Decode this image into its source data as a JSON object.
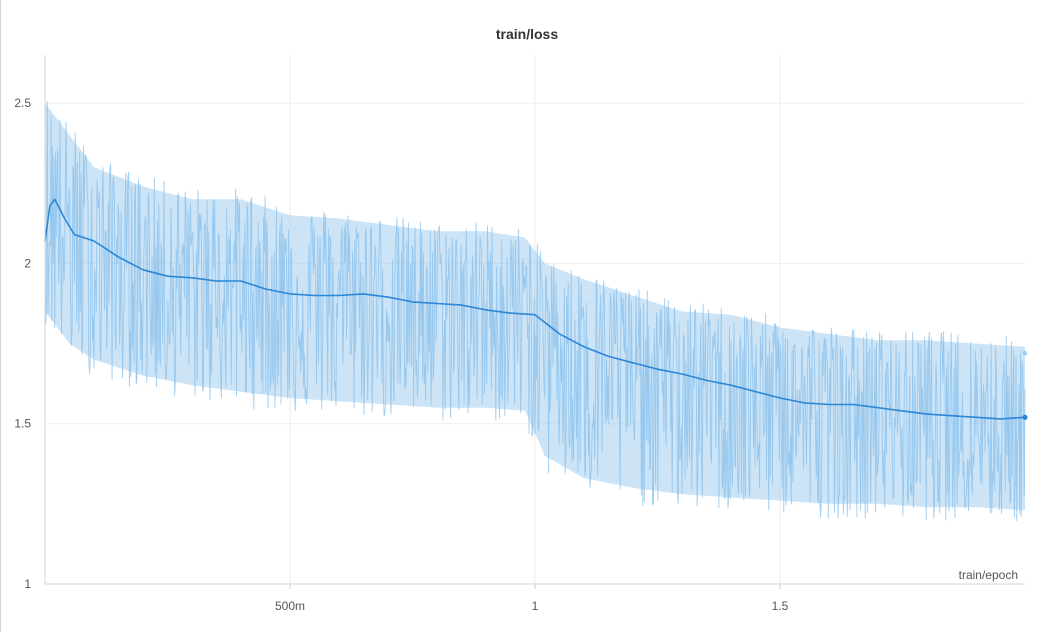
{
  "chart_data": {
    "type": "line",
    "title": "train/loss",
    "xlabel": "train/epoch",
    "ylabel": "",
    "xlim": [
      0,
      2.0
    ],
    "ylim": [
      1,
      2.65
    ],
    "grid": true,
    "x_ticks": [
      {
        "value": 0.5,
        "label": "500m"
      },
      {
        "value": 1.0,
        "label": "1"
      },
      {
        "value": 1.5,
        "label": "1.5"
      }
    ],
    "y_ticks": [
      {
        "value": 1,
        "label": "1"
      },
      {
        "value": 1.5,
        "label": "1.5"
      },
      {
        "value": 2,
        "label": "2"
      },
      {
        "value": 2.5,
        "label": "2.5"
      }
    ],
    "colors": {
      "raw": "#8ec3ec",
      "smoothed": "#2b86d6",
      "grid": "#eeeeee"
    },
    "series": [
      {
        "style": "smoothed",
        "x": [
          0.0,
          0.01,
          0.02,
          0.04,
          0.06,
          0.1,
          0.15,
          0.2,
          0.25,
          0.3,
          0.35,
          0.4,
          0.45,
          0.5,
          0.55,
          0.6,
          0.65,
          0.7,
          0.75,
          0.8,
          0.85,
          0.9,
          0.95,
          1.0,
          1.05,
          1.1,
          1.15,
          1.2,
          1.25,
          1.3,
          1.35,
          1.4,
          1.45,
          1.5,
          1.55,
          1.6,
          1.65,
          1.7,
          1.75,
          1.8,
          1.85,
          1.9,
          1.95,
          2.0
        ],
        "y": [
          2.07,
          2.18,
          2.2,
          2.14,
          2.09,
          2.07,
          2.02,
          1.98,
          1.96,
          1.955,
          1.945,
          1.945,
          1.92,
          1.905,
          1.9,
          1.9,
          1.905,
          1.895,
          1.88,
          1.875,
          1.87,
          1.855,
          1.845,
          1.84,
          1.78,
          1.74,
          1.71,
          1.69,
          1.67,
          1.655,
          1.635,
          1.62,
          1.6,
          1.58,
          1.565,
          1.56,
          1.56,
          1.55,
          1.54,
          1.53,
          1.525,
          1.52,
          1.515,
          1.52
        ]
      },
      {
        "style": "raw-band-upper",
        "x": [
          0.0,
          0.05,
          0.1,
          0.2,
          0.3,
          0.4,
          0.5,
          0.6,
          0.7,
          0.8,
          0.9,
          0.98,
          1.02,
          1.1,
          1.2,
          1.3,
          1.4,
          1.5,
          1.6,
          1.7,
          1.8,
          1.9,
          2.0
        ],
        "y": [
          2.5,
          2.4,
          2.3,
          2.24,
          2.2,
          2.2,
          2.15,
          2.14,
          2.12,
          2.1,
          2.1,
          2.08,
          2.0,
          1.95,
          1.9,
          1.85,
          1.84,
          1.8,
          1.78,
          1.76,
          1.76,
          1.75,
          1.74
        ]
      },
      {
        "style": "raw-band-lower",
        "x": [
          0.0,
          0.05,
          0.1,
          0.2,
          0.3,
          0.4,
          0.5,
          0.6,
          0.7,
          0.8,
          0.9,
          0.98,
          1.02,
          1.1,
          1.2,
          1.3,
          1.4,
          1.5,
          1.6,
          1.7,
          1.8,
          1.9,
          2.0
        ],
        "y": [
          1.85,
          1.75,
          1.7,
          1.65,
          1.62,
          1.6,
          1.58,
          1.57,
          1.56,
          1.55,
          1.55,
          1.54,
          1.4,
          1.33,
          1.3,
          1.28,
          1.27,
          1.26,
          1.25,
          1.25,
          1.24,
          1.24,
          1.23
        ]
      }
    ]
  }
}
